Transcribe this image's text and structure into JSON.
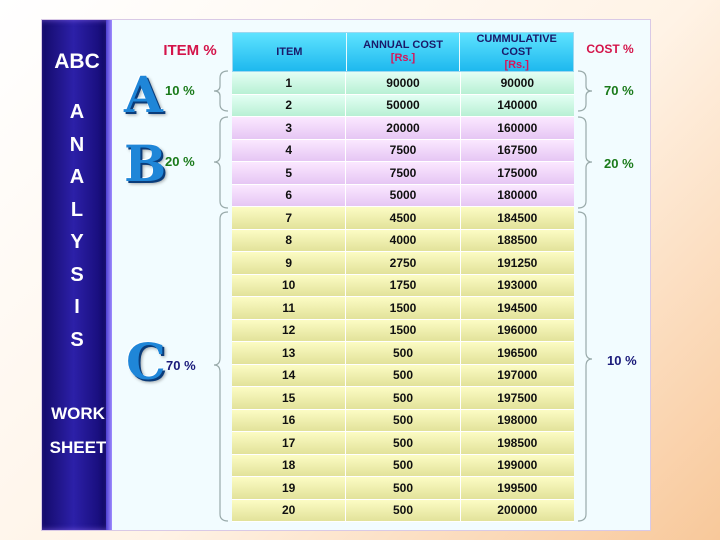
{
  "sidebar": {
    "title": "ABC",
    "word_letters": [
      "A",
      "N",
      "A",
      "L",
      "Y",
      "S",
      "I",
      "S"
    ],
    "work": "WORK",
    "sheet": "SHEET"
  },
  "headers": {
    "item_pct": "ITEM %",
    "item": "ITEM",
    "annual_cost": "ANNUAL COST",
    "annual_cost_unit": "[Rs.]",
    "cumulative_cost": "CUMMULATIVE COST",
    "cumulative_cost_unit": "[Rs.]",
    "cost_pct": "COST %"
  },
  "classes": {
    "a": {
      "letter": "A",
      "item_pct": "10 %",
      "cost_pct": "70 %"
    },
    "b": {
      "letter": "B",
      "item_pct": "20 %",
      "cost_pct": "20 %"
    },
    "c": {
      "letter": "C",
      "item_pct": "70 %",
      "cost_pct": "10 %"
    }
  },
  "rows": [
    {
      "item": "1",
      "annual": "90000",
      "cumulative": "90000",
      "cls": "a"
    },
    {
      "item": "2",
      "annual": "50000",
      "cumulative": "140000",
      "cls": "a"
    },
    {
      "item": "3",
      "annual": "20000",
      "cumulative": "160000",
      "cls": "b"
    },
    {
      "item": "4",
      "annual": "7500",
      "cumulative": "167500",
      "cls": "b"
    },
    {
      "item": "5",
      "annual": "7500",
      "cumulative": "175000",
      "cls": "b"
    },
    {
      "item": "6",
      "annual": "5000",
      "cumulative": "180000",
      "cls": "b"
    },
    {
      "item": "7",
      "annual": "4500",
      "cumulative": "184500",
      "cls": "c"
    },
    {
      "item": "8",
      "annual": "4000",
      "cumulative": "188500",
      "cls": "c"
    },
    {
      "item": "9",
      "annual": "2750",
      "cumulative": "191250",
      "cls": "c"
    },
    {
      "item": "10",
      "annual": "1750",
      "cumulative": "193000",
      "cls": "c"
    },
    {
      "item": "11",
      "annual": "1500",
      "cumulative": "194500",
      "cls": "c"
    },
    {
      "item": "12",
      "annual": "1500",
      "cumulative": "196000",
      "cls": "c"
    },
    {
      "item": "13",
      "annual": "500",
      "cumulative": "196500",
      "cls": "c"
    },
    {
      "item": "14",
      "annual": "500",
      "cumulative": "197000",
      "cls": "c"
    },
    {
      "item": "15",
      "annual": "500",
      "cumulative": "197500",
      "cls": "c"
    },
    {
      "item": "16",
      "annual": "500",
      "cumulative": "198000",
      "cls": "c"
    },
    {
      "item": "17",
      "annual": "500",
      "cumulative": "198500",
      "cls": "c"
    },
    {
      "item": "18",
      "annual": "500",
      "cumulative": "199000",
      "cls": "c"
    },
    {
      "item": "19",
      "annual": "500",
      "cumulative": "199500",
      "cls": "c"
    },
    {
      "item": "20",
      "annual": "500",
      "cumulative": "200000",
      "cls": "c"
    }
  ]
}
